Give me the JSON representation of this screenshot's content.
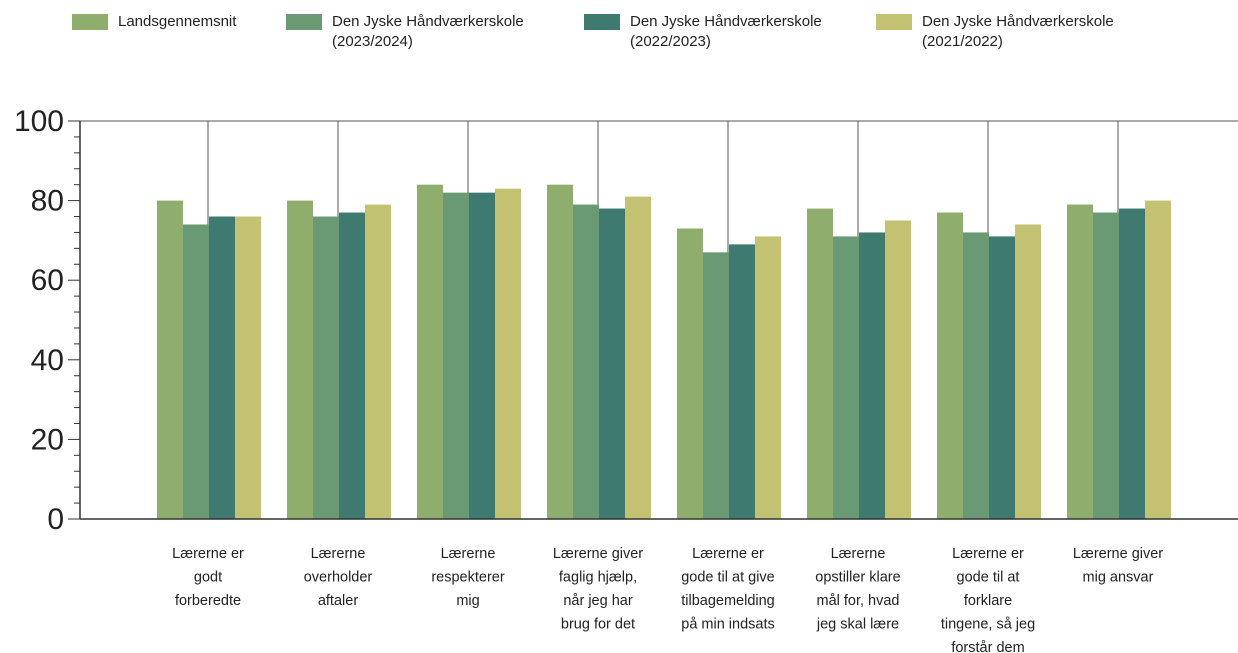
{
  "chart_data": {
    "type": "bar",
    "title": "",
    "xlabel": "",
    "ylabel": "",
    "ylim": [
      0,
      100
    ],
    "yticks": [
      0,
      20,
      40,
      60,
      80,
      100
    ],
    "grid": "vertical lines between category groups",
    "legend_position": "top",
    "categories": [
      "Lærerne er godt forberedte",
      "Lærerne overholder aftaler",
      "Lærerne respekterer mig",
      "Lærerne giver faglig hjælp, når jeg har brug for det",
      "Lærerne er gode til at give tilbagemelding på min indsats",
      "Lærerne opstiller klare mål for, hvad jeg skal lære",
      "Lærerne er gode til at forklare tingene, så jeg forstår dem",
      "Lærerne giver mig ansvar"
    ],
    "category_label_lines": [
      [
        "Lærerne er",
        "godt",
        "forberedte"
      ],
      [
        "Lærerne",
        "overholder",
        "aftaler"
      ],
      [
        "Lærerne",
        "respekterer",
        "mig"
      ],
      [
        "Lærerne giver",
        "faglig hjælp,",
        "når jeg har",
        "brug for det"
      ],
      [
        "Lærerne er",
        "gode til at give",
        "tilbagemelding",
        "på min indsats"
      ],
      [
        "Lærerne",
        "opstiller klare",
        "mål for, hvad",
        "jeg skal lære"
      ],
      [
        "Lærerne er",
        "gode til at",
        "forklare",
        "tingene, så jeg",
        "forstår dem"
      ],
      [
        "Lærerne giver",
        "mig ansvar"
      ]
    ],
    "series": [
      {
        "name": "Landsgennemsnit",
        "color": "#8fae6e",
        "values": [
          80,
          80,
          84,
          84,
          73,
          78,
          77,
          79
        ]
      },
      {
        "name": "Den Jyske Håndværkerskole\n(2023/2024)",
        "color": "#6a9a74",
        "values": [
          74,
          76,
          82,
          79,
          67,
          71,
          72,
          77
        ]
      },
      {
        "name": "Den Jyske Håndværkerskole\n(2022/2023)",
        "color": "#3f7a70",
        "values": [
          76,
          77,
          82,
          78,
          69,
          72,
          71,
          78
        ]
      },
      {
        "name": "Den Jyske Håndværkerskole\n(2021/2022)",
        "color": "#c3c272",
        "values": [
          76,
          79,
          83,
          81,
          71,
          75,
          74,
          80
        ]
      }
    ]
  }
}
